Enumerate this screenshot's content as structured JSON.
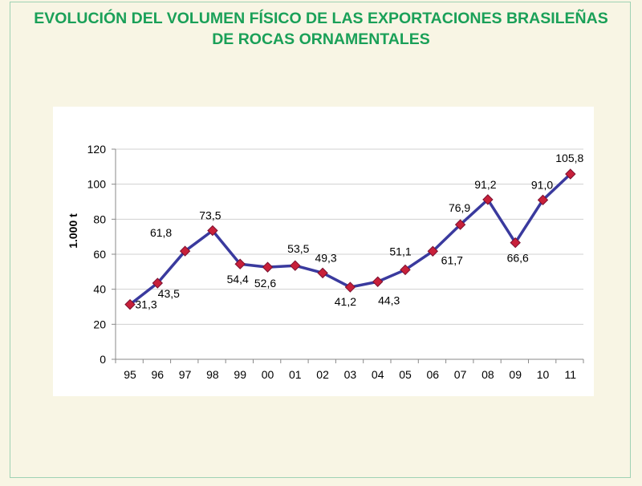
{
  "title": {
    "line1": "EVOLUCIÓN DEL VOLUMEN FÍSICO DE LAS EXPORTACIONES BRASILEÑAS",
    "line2": "DE ROCAS ORNAMENTALES"
  },
  "colors": {
    "title": "#1aa058",
    "line": "#3a3a9e",
    "marker": "#c8203a",
    "grid": "#d0d0d0",
    "background": "#f8f5e4"
  },
  "chart_data": {
    "type": "line",
    "ylabel": "1.000 t",
    "xlabel": "",
    "ylim": [
      0,
      120
    ],
    "yticks": [
      "0",
      "20",
      "40",
      "60",
      "80",
      "100",
      "120"
    ],
    "grid": "horizontal",
    "categories": [
      "95",
      "96",
      "97",
      "98",
      "99",
      "00",
      "01",
      "02",
      "03",
      "04",
      "05",
      "06",
      "07",
      "08",
      "09",
      "10",
      "11"
    ],
    "series": [
      {
        "values": [
          31.3,
          43.5,
          61.8,
          73.5,
          54.4,
          52.6,
          53.5,
          49.3,
          41.2,
          44.3,
          51.1,
          61.7,
          76.9,
          91.2,
          66.6,
          91.0,
          105.8
        ],
        "labels": [
          "31,3",
          "43,5",
          "61,8",
          "73,5",
          "54,4",
          "52,6",
          "53,5",
          "49,3",
          "41,2",
          "44,3",
          "51,1",
          "61,7",
          "76,9",
          "91,2",
          "66,6",
          "91,0",
          "105,8"
        ]
      }
    ]
  }
}
